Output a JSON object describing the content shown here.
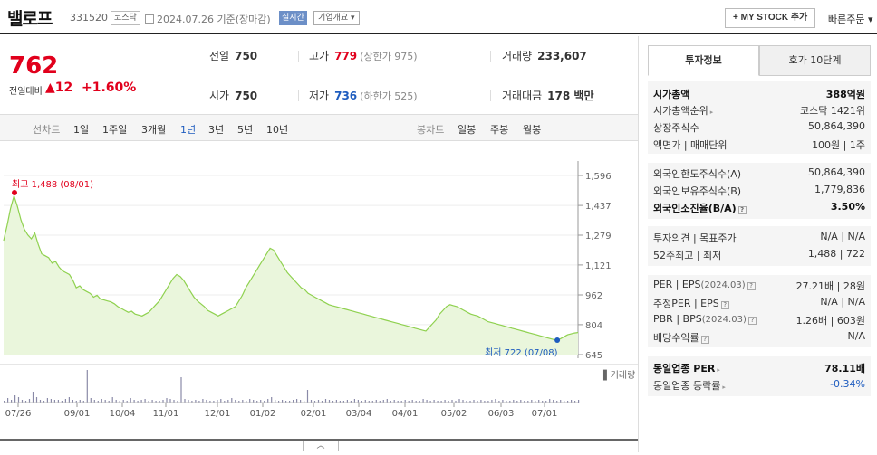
{
  "header": {
    "name": "밸로프",
    "code": "331520",
    "market": "코스닥",
    "date": "2024.07.26",
    "basis": "기준(장마감)",
    "realtime": "실시간",
    "corp_info": "기업개요",
    "mystock": "+ MY STOCK 추가",
    "quick_order": "빠른주문"
  },
  "price": {
    "current": "762",
    "change_label": "전일대비",
    "change_arrow": "▲",
    "change": "12",
    "change_pct": "+1.60%"
  },
  "summary": {
    "prev_label": "전일",
    "prev": "750",
    "high_label": "고가",
    "high": "779",
    "high_limit": "(상한가 975)",
    "volume_label": "거래량",
    "volume": "233,607",
    "open_label": "시가",
    "open": "750",
    "low_label": "저가",
    "low": "736",
    "low_limit": "(하한가 525)",
    "amount_label": "거래대금",
    "amount": "178 백만"
  },
  "periods": {
    "line_label": "선차트",
    "items": [
      "1일",
      "1주일",
      "3개월",
      "1년",
      "3년",
      "5년",
      "10년"
    ],
    "active": "1년",
    "candle_label": "봉차트",
    "candles": [
      "일봉",
      "주봉",
      "월봉"
    ]
  },
  "chart_data": {
    "type": "area",
    "y_ticks": [
      "1,596",
      "1,437",
      "1,279",
      "1,121",
      "962",
      "804",
      "645"
    ],
    "ylim": [
      645,
      1596
    ],
    "x_ticks": [
      "07/26",
      "09/01",
      "10/04",
      "11/01",
      "12/01",
      "01/02",
      "02/01",
      "03/04",
      "04/01",
      "05/02",
      "06/03",
      "07/01"
    ],
    "max_label": "최고 1,488 (08/01)",
    "min_label": "최저 722 (07/08)",
    "volume_label": "거래량",
    "series": [
      {
        "values": [
          1250,
          1330,
          1420,
          1488,
          1430,
          1360,
          1310,
          1280,
          1260,
          1290,
          1230,
          1180,
          1170,
          1160,
          1130,
          1140,
          1110,
          1090,
          1080,
          1070,
          1040,
          1000,
          1010,
          990,
          980,
          970,
          950,
          960,
          940,
          935,
          930,
          925,
          915,
          900,
          890,
          880,
          870,
          875,
          860,
          855,
          850,
          860,
          870,
          890,
          910,
          930,
          960,
          990,
          1020,
          1050,
          1070,
          1060,
          1040,
          1010,
          980,
          950,
          930,
          915,
          900,
          880,
          870,
          860,
          850,
          860,
          870,
          880,
          890,
          900,
          930,
          960,
          1000,
          1030,
          1060,
          1090,
          1120,
          1150,
          1180,
          1210,
          1200,
          1170,
          1140,
          1110,
          1080,
          1060,
          1040,
          1020,
          1000,
          990,
          970,
          960,
          950,
          940,
          930,
          920,
          910,
          905,
          900,
          895,
          890,
          885,
          880,
          875,
          870,
          865,
          860,
          855,
          850,
          845,
          840,
          835,
          830,
          825,
          820,
          815,
          810,
          805,
          800,
          795,
          790,
          785,
          780,
          775,
          770,
          790,
          810,
          830,
          860,
          880,
          900,
          910,
          905,
          900,
          890,
          880,
          870,
          860,
          855,
          850,
          840,
          830,
          820,
          815,
          810,
          805,
          800,
          795,
          790,
          785,
          780,
          775,
          770,
          765,
          760,
          755,
          750,
          745,
          740,
          735,
          730,
          725,
          722,
          730,
          740,
          750,
          755,
          760,
          762
        ]
      }
    ]
  },
  "panel": {
    "tab_active": "투자정보",
    "tab_other": "호가 10단계",
    "rows1": [
      {
        "l": "시가총액",
        "r": "388억원",
        "bold": true
      },
      {
        "l": "시가총액순위",
        "r": "코스닥 1421위"
      },
      {
        "l": "상장주식수",
        "r": "50,864,390"
      },
      {
        "l": "액면가 | 매매단위",
        "r": "100원 | 1주"
      }
    ],
    "rows2": [
      {
        "l": "외국인한도주식수(A)",
        "r": "50,864,390"
      },
      {
        "l": "외국인보유주식수(B)",
        "r": "1,779,836"
      },
      {
        "l": "외국인소진율(B/A)",
        "r": "3.50%",
        "bold": true
      }
    ],
    "rows3": [
      {
        "l": "투자의견 | 목표주가",
        "r": "N/A | N/A"
      },
      {
        "l": "52주최고 | 최저",
        "r": "1,488 | 722"
      }
    ],
    "rows4": [
      {
        "l": "PER | EPS",
        "lsm": "(2024.03)",
        "r": "27.21배 | 28원"
      },
      {
        "l": "추정PER | EPS",
        "r": "N/A | N/A"
      },
      {
        "l": "PBR | BPS",
        "lsm": "(2024.03)",
        "r": "1.26배 | 603원"
      },
      {
        "l": "배당수익률",
        "r": "N/A"
      }
    ],
    "rows5": [
      {
        "l": "동일업종 PER",
        "r": "78.11배",
        "bold": true
      },
      {
        "l": "동일업종 등락률",
        "r": "-0.34%"
      }
    ]
  },
  "colors": {
    "up": "#e1001c",
    "down": "#1e5cbf",
    "line": "#8fd14f",
    "fill": "#eaf6dc"
  }
}
